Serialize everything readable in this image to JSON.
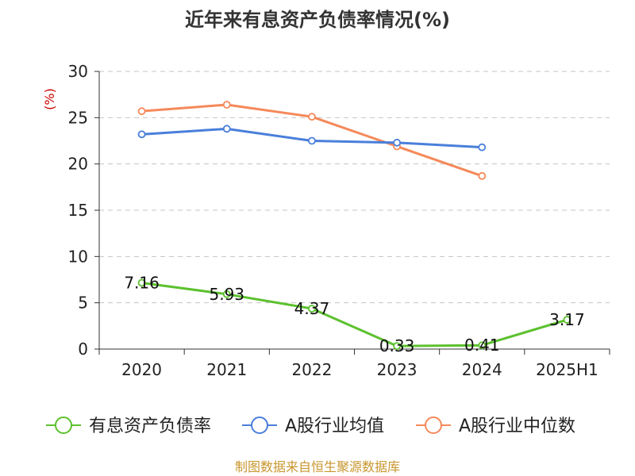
{
  "chart_data": {
    "type": "line",
    "title": "近年来有息资产负债率情况(%)",
    "ylabel": "(%)",
    "xlabel": "",
    "categories": [
      "2020",
      "2021",
      "2022",
      "2023",
      "2024",
      "2025H1"
    ],
    "ylim": [
      0,
      30
    ],
    "yticks": [
      0,
      5,
      10,
      15,
      20,
      25,
      30
    ],
    "grid": true,
    "legend_position": "bottom",
    "series": [
      {
        "name": "有息资产负债率",
        "color": "#5cc12e",
        "values": [
          7.16,
          5.93,
          4.37,
          0.33,
          0.41,
          3.17
        ],
        "labels": [
          "7.16",
          "5.93",
          "4.37",
          "0.33",
          "0.41",
          "3.17"
        ]
      },
      {
        "name": "A股行业均值",
        "color": "#4a7fdb",
        "values": [
          23.2,
          23.8,
          22.5,
          22.3,
          21.8,
          null
        ]
      },
      {
        "name": "A股行业中位数",
        "color": "#f5895a",
        "values": [
          25.7,
          26.4,
          25.1,
          21.9,
          18.7,
          null
        ]
      }
    ]
  },
  "source": "制图数据来自恒生聚源数据库"
}
